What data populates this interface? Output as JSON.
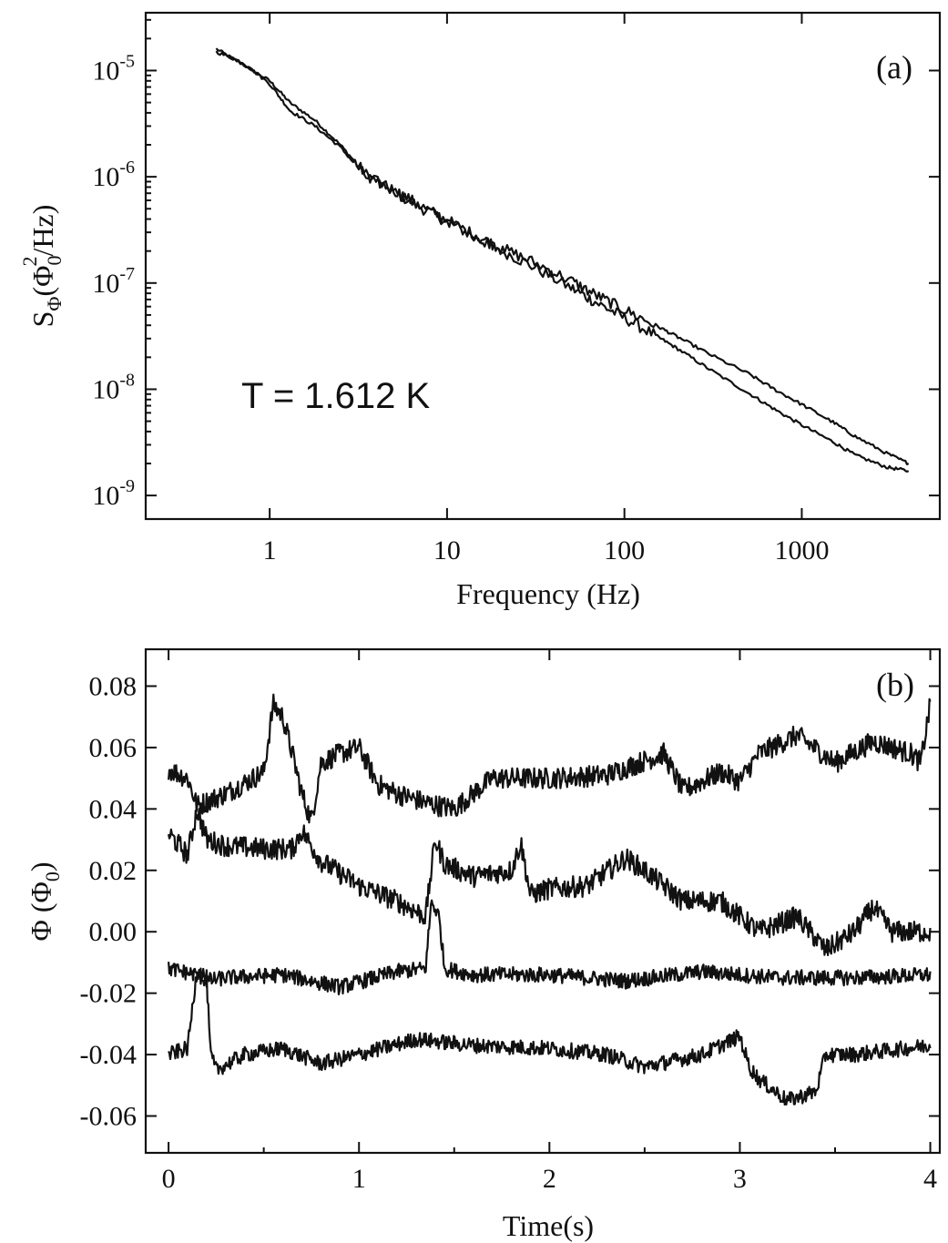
{
  "chart_data": [
    {
      "type": "line",
      "panel_label": "(a)",
      "xlabel": "Frequency (Hz)",
      "ylabel": "S_Φ(Φ_0^2/Hz)",
      "ylabel_parts": {
        "main": "S",
        "sub": "Φ",
        "open": "(Φ",
        "sub2": "0",
        "sup": "2",
        "close": "/Hz)"
      },
      "xscale": "log",
      "yscale": "log",
      "xlim": [
        0.2,
        6000
      ],
      "ylim": [
        6e-10,
        3.5e-05
      ],
      "xticks": [
        {
          "value": 1,
          "label": "1"
        },
        {
          "value": 10,
          "label": "10"
        },
        {
          "value": 100,
          "label": "100"
        },
        {
          "value": 1000,
          "label": "1000"
        }
      ],
      "yticks": [
        {
          "value": 1e-05,
          "base": "10",
          "exp": "-5"
        },
        {
          "value": 1e-06,
          "base": "10",
          "exp": "-6"
        },
        {
          "value": 1e-07,
          "base": "10",
          "exp": "-7"
        },
        {
          "value": 1e-08,
          "base": "10",
          "exp": "-8"
        },
        {
          "value": 1e-09,
          "base": "10",
          "exp": "-9"
        }
      ],
      "annotation": "T = 1.612 K",
      "series": [
        {
          "x": [
            0.5,
            0.7,
            1.0,
            1.3,
            1.8,
            2.5,
            3.5,
            5,
            7,
            10,
            15,
            20,
            30,
            50,
            70,
            100,
            150,
            200,
            300,
            500,
            700,
            1000,
            1500,
            2000,
            3000,
            4000
          ],
          "y": [
            1.6e-05,
            1.15e-05,
            8e-06,
            5e-06,
            3.4e-06,
            2e-06,
            1.05e-06,
            7.2e-07,
            5.2e-07,
            3.8e-07,
            2.6e-07,
            2.05e-07,
            1.45e-07,
            9e-08,
            6.5e-08,
            4.7e-08,
            3.2e-08,
            2.4e-08,
            1.55e-08,
            9.2e-09,
            6.5e-09,
            4.6e-09,
            3.2e-09,
            2.4e-09,
            1.85e-09,
            1.7e-09
          ],
          "noise": 0.05
        },
        {
          "x": [
            0.5,
            0.7,
            1.0,
            1.3,
            1.8,
            2.5,
            3.5,
            5,
            7,
            10,
            15,
            20,
            30,
            50,
            70,
            100,
            150,
            200,
            300,
            500,
            700,
            1000,
            1500,
            2000,
            3000,
            4000
          ],
          "y": [
            1.5e-05,
            1.2e-05,
            7.5e-06,
            4.2e-06,
            3e-06,
            1.9e-06,
            1e-06,
            7.5e-07,
            5.4e-07,
            3.9e-07,
            2.7e-07,
            2.15e-07,
            1.6e-07,
            1.05e-07,
            7.6e-08,
            5.6e-08,
            4e-08,
            3.1e-08,
            2.15e-08,
            1.4e-08,
            1e-08,
            7.2e-09,
            4.9e-09,
            3.6e-09,
            2.5e-09,
            2e-09
          ],
          "noise": 0.05
        }
      ]
    },
    {
      "type": "line",
      "panel_label": "(b)",
      "xlabel": "Time(s)",
      "ylabel": "Φ (Φ_0)",
      "ylabel_parts": {
        "main": "Φ (Φ",
        "sub": "0",
        "close": ")"
      },
      "xlim": [
        -0.12,
        4.05
      ],
      "ylim": [
        -0.072,
        0.092
      ],
      "xticks": [
        {
          "value": 0,
          "label": "0"
        },
        {
          "value": 1,
          "label": "1"
        },
        {
          "value": 2,
          "label": "2"
        },
        {
          "value": 3,
          "label": "3"
        },
        {
          "value": 4,
          "label": "4"
        }
      ],
      "yticks": [
        {
          "value": 0.08,
          "label": "0.08"
        },
        {
          "value": 0.06,
          "label": "0.06"
        },
        {
          "value": 0.04,
          "label": "0.04"
        },
        {
          "value": 0.02,
          "label": "0.02"
        },
        {
          "value": 0.0,
          "label": "0.00"
        },
        {
          "value": -0.02,
          "label": "-0.02"
        },
        {
          "value": -0.04,
          "label": "-0.04"
        },
        {
          "value": -0.06,
          "label": "-0.06"
        }
      ],
      "series": [
        {
          "x": [
            0,
            0.1,
            0.15,
            0.3,
            0.5,
            0.55,
            0.6,
            0.65,
            0.7,
            0.75,
            0.8,
            0.9,
            1.0,
            1.1,
            1.2,
            1.35,
            1.5,
            1.7,
            2.0,
            2.3,
            2.6,
            2.7,
            2.9,
            3.0,
            3.1,
            3.3,
            3.5,
            3.7,
            3.9,
            3.95,
            4.0
          ],
          "y": [
            0.053,
            0.05,
            0.041,
            0.045,
            0.052,
            0.074,
            0.07,
            0.058,
            0.045,
            0.036,
            0.055,
            0.058,
            0.06,
            0.048,
            0.045,
            0.042,
            0.04,
            0.05,
            0.05,
            0.051,
            0.058,
            0.046,
            0.052,
            0.049,
            0.058,
            0.064,
            0.055,
            0.062,
            0.058,
            0.055,
            0.074
          ],
          "noise": 0.0035
        },
        {
          "x": [
            0,
            0.1,
            0.15,
            0.2,
            0.3,
            0.5,
            0.65,
            0.7,
            0.8,
            1.0,
            1.2,
            1.35,
            1.4,
            1.45,
            1.6,
            1.8,
            1.85,
            1.9,
            2.0,
            2.2,
            2.4,
            2.5,
            2.7,
            2.9,
            3.1,
            3.3,
            3.45,
            3.6,
            3.7,
            3.8,
            4.0
          ],
          "y": [
            0.032,
            0.025,
            0.04,
            0.03,
            0.028,
            0.027,
            0.027,
            0.033,
            0.023,
            0.015,
            0.01,
            0.005,
            0.03,
            0.022,
            0.018,
            0.02,
            0.029,
            0.012,
            0.014,
            0.015,
            0.024,
            0.02,
            0.01,
            0.01,
            0.0,
            0.005,
            -0.006,
            0.0,
            0.008,
            0.0,
            0.0
          ],
          "noise": 0.0035
        },
        {
          "x": [
            0,
            0.15,
            0.2,
            0.3,
            0.6,
            0.9,
            1.2,
            1.35,
            1.38,
            1.42,
            1.45,
            1.6,
            2.0,
            2.4,
            2.8,
            3.2,
            3.6,
            4.0
          ],
          "y": [
            -0.012,
            -0.014,
            -0.016,
            -0.015,
            -0.014,
            -0.018,
            -0.013,
            -0.012,
            0.01,
            0.005,
            -0.012,
            -0.014,
            -0.014,
            -0.016,
            -0.013,
            -0.015,
            -0.015,
            -0.014
          ],
          "noise": 0.0025
        },
        {
          "x": [
            0,
            0.1,
            0.15,
            0.2,
            0.22,
            0.25,
            0.4,
            0.6,
            0.8,
            1.0,
            1.3,
            1.6,
            2.0,
            2.3,
            2.5,
            2.8,
            3.0,
            3.05,
            3.1,
            3.25,
            3.4,
            3.45,
            3.6,
            4.0
          ],
          "y": [
            -0.04,
            -0.038,
            -0.012,
            -0.015,
            -0.04,
            -0.045,
            -0.04,
            -0.038,
            -0.043,
            -0.04,
            -0.035,
            -0.037,
            -0.038,
            -0.04,
            -0.044,
            -0.04,
            -0.034,
            -0.044,
            -0.048,
            -0.055,
            -0.052,
            -0.04,
            -0.04,
            -0.037
          ],
          "noise": 0.0025
        }
      ]
    }
  ]
}
